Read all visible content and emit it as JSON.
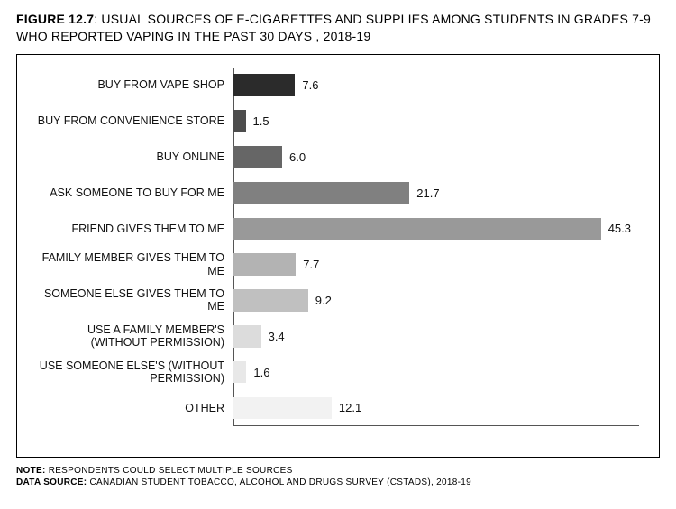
{
  "title": {
    "figure_label": "FIGURE 12.7",
    "text": ": USUAL SOURCES OF E-CIGARETTES AND SUPPLIES AMONG STUDENTS IN GRADES 7-9 WHO REPORTED VAPING IN THE PAST 30 DAYS , 2018-19",
    "fontsize": 14,
    "fontweight_label": 700
  },
  "chart": {
    "type": "bar-horizontal",
    "xlim": [
      0,
      50
    ],
    "background_color": "#ffffff",
    "axis_color": "#555555",
    "label_fontsize": 12.5,
    "value_fontsize": 13,
    "bar_height_ratio": 0.62,
    "categories": [
      "BUY FROM VAPE SHOP",
      "BUY FROM CONVENIENCE STORE",
      "BUY ONLINE",
      "ASK SOMEONE TO BUY FOR ME",
      "FRIEND GIVES THEM TO ME",
      "FAMILY MEMBER GIVES THEM TO ME",
      "SOMEONE ELSE GIVES THEM TO ME",
      "USE A FAMILY MEMBER'S (WITHOUT PERMISSION)",
      "USE SOMEONE ELSE'S (WITHOUT PERMISSION)",
      "OTHER"
    ],
    "values": [
      7.6,
      1.5,
      6.0,
      21.7,
      45.3,
      7.7,
      9.2,
      3.4,
      1.6,
      12.1
    ],
    "value_labels": [
      "7.6",
      "1.5",
      "6.0",
      "21.7",
      "45.3",
      "7.7",
      "9.2",
      "3.4",
      "1.6",
      "12.1"
    ],
    "bar_colors": [
      "#2b2b2b",
      "#4d4d4d",
      "#666666",
      "#808080",
      "#999999",
      "#b3b3b3",
      "#c0c0c0",
      "#dcdcdc",
      "#e8e8e8",
      "#f2f2f2"
    ]
  },
  "footer": {
    "note_label": "NOTE:",
    "note_text": " RESPONDENTS COULD SELECT MULTIPLE SOURCES",
    "source_label": "DATA SOURCE:",
    "source_text": " CANADIAN STUDENT TOBACCO, ALCOHOL AND DRUGS SURVEY (CSTADS), 2018-19",
    "fontsize": 10
  }
}
